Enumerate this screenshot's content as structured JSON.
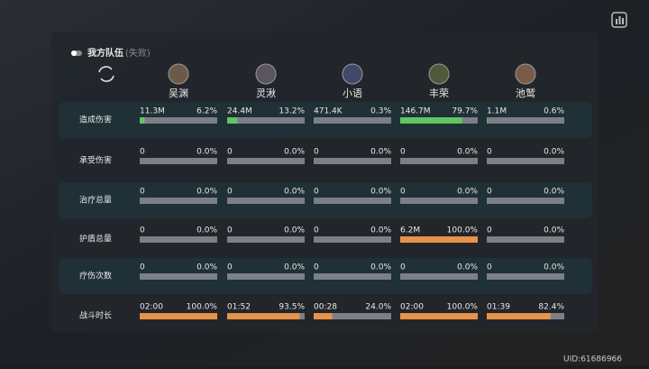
{
  "header": {
    "title": "我方队伍",
    "status": "(失败)"
  },
  "characters": [
    "吴渊",
    "灵湫",
    "小语",
    "丰荣",
    "池鹫"
  ],
  "rows": [
    {
      "label": "造成伤害",
      "color": "#63c463",
      "cells": [
        {
          "value": "11.3M",
          "percent": 6.2,
          "percent_label": "6.2%"
        },
        {
          "value": "24.4M",
          "percent": 13.2,
          "percent_label": "13.2%"
        },
        {
          "value": "471.4K",
          "percent": 0.3,
          "percent_label": "0.3%"
        },
        {
          "value": "146.7M",
          "percent": 79.7,
          "percent_label": "79.7%"
        },
        {
          "value": "1.1M",
          "percent": 0.6,
          "percent_label": "0.6%"
        }
      ]
    },
    {
      "label": "承受伤害",
      "color": "#63c463",
      "cells": [
        {
          "value": "0",
          "percent": 0,
          "percent_label": "0.0%"
        },
        {
          "value": "0",
          "percent": 0,
          "percent_label": "0.0%"
        },
        {
          "value": "0",
          "percent": 0,
          "percent_label": "0.0%"
        },
        {
          "value": "0",
          "percent": 0,
          "percent_label": "0.0%"
        },
        {
          "value": "0",
          "percent": 0,
          "percent_label": "0.0%"
        }
      ]
    },
    {
      "label": "治疗总量",
      "color": "#63c463",
      "cells": [
        {
          "value": "0",
          "percent": 0,
          "percent_label": "0.0%"
        },
        {
          "value": "0",
          "percent": 0,
          "percent_label": "0.0%"
        },
        {
          "value": "0",
          "percent": 0,
          "percent_label": "0.0%"
        },
        {
          "value": "0",
          "percent": 0,
          "percent_label": "0.0%"
        },
        {
          "value": "0",
          "percent": 0,
          "percent_label": "0.0%"
        }
      ]
    },
    {
      "label": "护盾总量",
      "color": "#e8924a",
      "cells": [
        {
          "value": "0",
          "percent": 0,
          "percent_label": "0.0%"
        },
        {
          "value": "0",
          "percent": 0,
          "percent_label": "0.0%"
        },
        {
          "value": "0",
          "percent": 0,
          "percent_label": "0.0%"
        },
        {
          "value": "6.2M",
          "percent": 100,
          "percent_label": "100.0%"
        },
        {
          "value": "0",
          "percent": 0,
          "percent_label": "0.0%"
        }
      ]
    },
    {
      "label": "疗伤次数",
      "color": "#63c463",
      "cells": [
        {
          "value": "0",
          "percent": 0,
          "percent_label": "0.0%"
        },
        {
          "value": "0",
          "percent": 0,
          "percent_label": "0.0%"
        },
        {
          "value": "0",
          "percent": 0,
          "percent_label": "0.0%"
        },
        {
          "value": "0",
          "percent": 0,
          "percent_label": "0.0%"
        },
        {
          "value": "0",
          "percent": 0,
          "percent_label": "0.0%"
        }
      ]
    },
    {
      "label": "战斗时长",
      "color": "#e8924a",
      "cells": [
        {
          "value": "02:00",
          "percent": 100,
          "percent_label": "100.0%"
        },
        {
          "value": "01:52",
          "percent": 93.5,
          "percent_label": "93.5%"
        },
        {
          "value": "00:28",
          "percent": 24,
          "percent_label": "24.0%"
        },
        {
          "value": "02:00",
          "percent": 100,
          "percent_label": "100.0%"
        },
        {
          "value": "01:39",
          "percent": 82.4,
          "percent_label": "82.4%"
        }
      ]
    }
  ],
  "uid": "UID:61686966"
}
